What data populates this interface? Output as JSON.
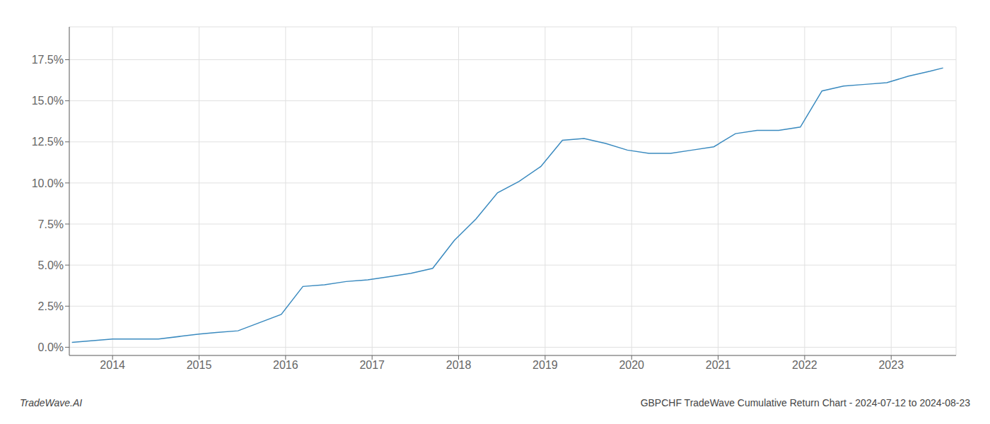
{
  "chart_data": {
    "type": "line",
    "title": "GBPCHF TradeWave Cumulative Return Chart - 2024-07-12 to 2024-08-23",
    "annotations": [
      "TradeWave.AI"
    ],
    "x": [
      2013.53,
      2014.0,
      2014.53,
      2015.0,
      2015.2,
      2015.45,
      2015.95,
      2016.2,
      2016.45,
      2016.7,
      2016.95,
      2017.2,
      2017.45,
      2017.7,
      2017.95,
      2018.2,
      2018.45,
      2018.7,
      2018.95,
      2019.2,
      2019.45,
      2019.7,
      2019.95,
      2020.2,
      2020.45,
      2020.7,
      2020.95,
      2021.2,
      2021.45,
      2021.7,
      2021.95,
      2022.2,
      2022.45,
      2022.7,
      2022.95,
      2023.2,
      2023.45,
      2023.6
    ],
    "values": [
      0.003,
      0.005,
      0.005,
      0.008,
      0.009,
      0.01,
      0.02,
      0.037,
      0.038,
      0.04,
      0.041,
      0.043,
      0.045,
      0.048,
      0.065,
      0.078,
      0.094,
      0.101,
      0.11,
      0.126,
      0.127,
      0.124,
      0.12,
      0.118,
      0.118,
      0.12,
      0.122,
      0.13,
      0.132,
      0.132,
      0.134,
      0.156,
      0.159,
      0.16,
      0.161,
      0.165,
      0.168,
      0.17
    ],
    "color": "#3a8abf",
    "xlim": [
      2013.5,
      2023.75
    ],
    "ylim": [
      -0.005,
      0.195
    ],
    "xticks": [
      2014,
      2015,
      2016,
      2017,
      2018,
      2019,
      2020,
      2021,
      2022,
      2023
    ],
    "yticks": [
      {
        "value": 0.0,
        "label": "0.0%"
      },
      {
        "value": 0.025,
        "label": "2.5%"
      },
      {
        "value": 0.05,
        "label": "5.0%"
      },
      {
        "value": 0.075,
        "label": "7.5%"
      },
      {
        "value": 0.1,
        "label": "10.0%"
      },
      {
        "value": 0.125,
        "label": "12.5%"
      },
      {
        "value": 0.15,
        "label": "15.0%"
      },
      {
        "value": 0.175,
        "label": "17.5%"
      }
    ],
    "grid": true
  }
}
